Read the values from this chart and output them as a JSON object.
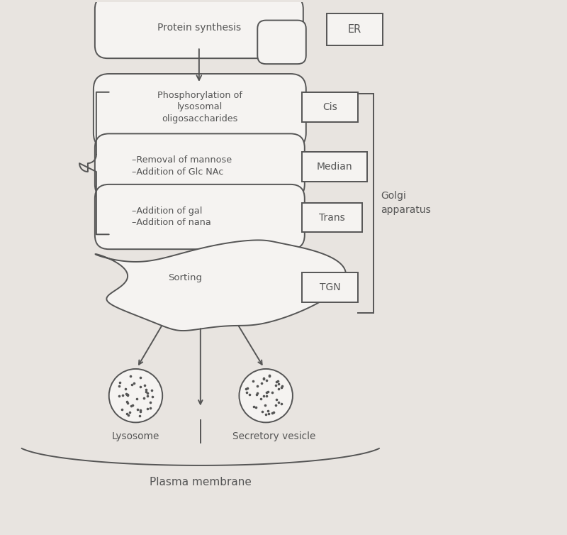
{
  "bg_color": "#e8e4e0",
  "line_color": "#555555",
  "white": "#f5f3f1",
  "protein_synthesis_text": "Protein synthesis",
  "er_text": "ER",
  "cis_text": "Cis",
  "median_text": "Median",
  "trans_text": "Trans",
  "tgn_text": "TGN",
  "golgi_text": "Golgi\napparatus",
  "sorting_text": "Sorting",
  "lysosome_text": "Lysosome",
  "secretory_text": "Secretory vesicle",
  "plasma_text": "Plasma membrane",
  "box1_text": "Phosphorylation of\nlysosomal\noligosaccharides",
  "box2_text": "–Removal of mannose\n–Addition of Glc NAc",
  "box3_text": "–Addition of gal\n–Addition of nana"
}
